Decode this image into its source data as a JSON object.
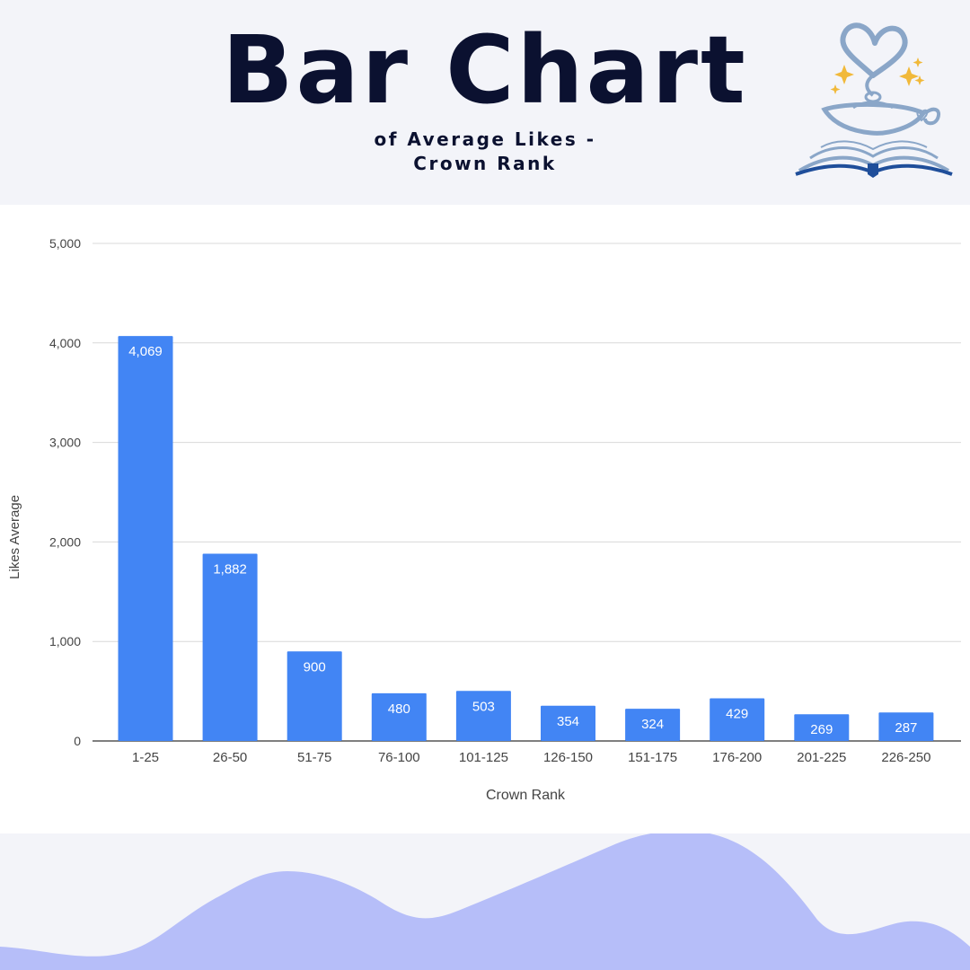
{
  "header": {
    "title": "Bar Chart",
    "subtitle": "of Average Likes - Crown Rank"
  },
  "logo": {
    "icon": "heart-lamp-book-logo-icon"
  },
  "colors": {
    "bar": "#4285f4",
    "bar_label": "#ffffff",
    "title": "#0b1130",
    "wave": "#b6bef9",
    "grid": "#d9d9d9",
    "axis_text": "#444444"
  },
  "chart_data": {
    "type": "bar",
    "xlabel": "Crown Rank",
    "ylabel": "Likes Average",
    "categories": [
      "1-25",
      "26-50",
      "51-75",
      "76-100",
      "101-125",
      "126-150",
      "151-175",
      "176-200",
      "201-225",
      "226-250"
    ],
    "values": [
      4069,
      1882,
      900,
      480,
      503,
      354,
      324,
      429,
      269,
      287
    ],
    "data_labels": [
      "4,069",
      "1,882",
      "900",
      "480",
      "503",
      "354",
      "324",
      "429",
      "269",
      "287"
    ],
    "ylim": [
      0,
      5000
    ],
    "yticks": [
      0,
      1000,
      2000,
      3000,
      4000,
      5000
    ],
    "ytick_labels": [
      "0",
      "1,000",
      "2,000",
      "3,000",
      "4,000",
      "5,000"
    ],
    "grid": true,
    "legend": "none"
  }
}
